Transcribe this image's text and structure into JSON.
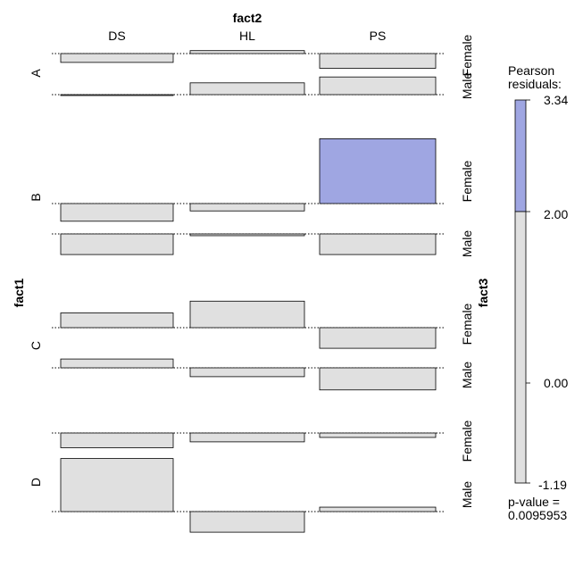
{
  "chart_data": {
    "type": "association-plot",
    "title": "fact2",
    "row_axis_label": "fact1",
    "sub_axis_label": "fact3",
    "column_levels": [
      "DS",
      "HL",
      "PS"
    ],
    "row_levels": [
      "A",
      "B",
      "C",
      "D"
    ],
    "sub_levels": [
      "Female",
      "Male"
    ],
    "legend": {
      "title_lines": [
        "Pearson",
        "residuals:"
      ],
      "ticks": [
        "3.34",
        "2.00",
        "0.00",
        "-1.19"
      ],
      "max": 3.34,
      "min": -1.19,
      "threshold": 2.0,
      "colors": {
        "positive_high": "#9fa6e2",
        "neutral": "#e0e0e0"
      },
      "pvalue_lines": [
        "p-value =",
        "0.0095953"
      ]
    },
    "cells": [
      {
        "row": "A",
        "sub": "Female",
        "DS": -0.3,
        "HL": 0.1,
        "PS": -0.5
      },
      {
        "row": "A",
        "sub": "Male",
        "DS": -0.03,
        "HL": 0.4,
        "PS": 0.6
      },
      {
        "row": "B",
        "sub": "Female",
        "DS": -0.6,
        "HL": -0.25,
        "PS": 2.2
      },
      {
        "row": "B",
        "sub": "Male",
        "DS": -0.7,
        "HL": -0.06,
        "PS": -0.7
      },
      {
        "row": "C",
        "sub": "Female",
        "DS": 0.5,
        "HL": 0.9,
        "PS": -0.7
      },
      {
        "row": "C",
        "sub": "Male",
        "DS": 0.3,
        "HL": -0.3,
        "PS": -0.75
      },
      {
        "row": "D",
        "sub": "Female",
        "DS": -0.5,
        "HL": -0.3,
        "PS": -0.15
      },
      {
        "row": "D",
        "sub": "Male",
        "DS": 1.8,
        "HL": -0.7,
        "PS": 0.15
      }
    ]
  }
}
